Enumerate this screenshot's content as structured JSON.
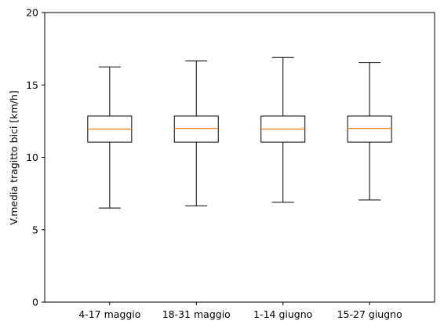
{
  "chart_data": {
    "type": "boxplot",
    "title": "",
    "xlabel": "",
    "ylabel": "V.media tragitto bici [km/h]",
    "ylim": [
      0,
      20
    ],
    "yticks": [
      0,
      5,
      10,
      15,
      20
    ],
    "grid": false,
    "legend": "none",
    "categories": [
      "4-17 maggio",
      "18-31 maggio",
      "1-14 giugno",
      "15-27 giugno"
    ],
    "boxes": [
      {
        "whisker_low": 6.5,
        "q1": 11.05,
        "median": 11.95,
        "q3": 12.85,
        "whisker_high": 16.25
      },
      {
        "whisker_low": 6.65,
        "q1": 11.05,
        "median": 12.0,
        "q3": 12.85,
        "whisker_high": 16.65
      },
      {
        "whisker_low": 6.9,
        "q1": 11.05,
        "median": 11.95,
        "q3": 12.85,
        "whisker_high": 16.9
      },
      {
        "whisker_low": 7.05,
        "q1": 11.05,
        "median": 12.0,
        "q3": 12.85,
        "whisker_high": 16.55
      }
    ],
    "colors": {
      "box": "#000000",
      "median": "#ff7f0e",
      "axes": "#000000"
    }
  }
}
